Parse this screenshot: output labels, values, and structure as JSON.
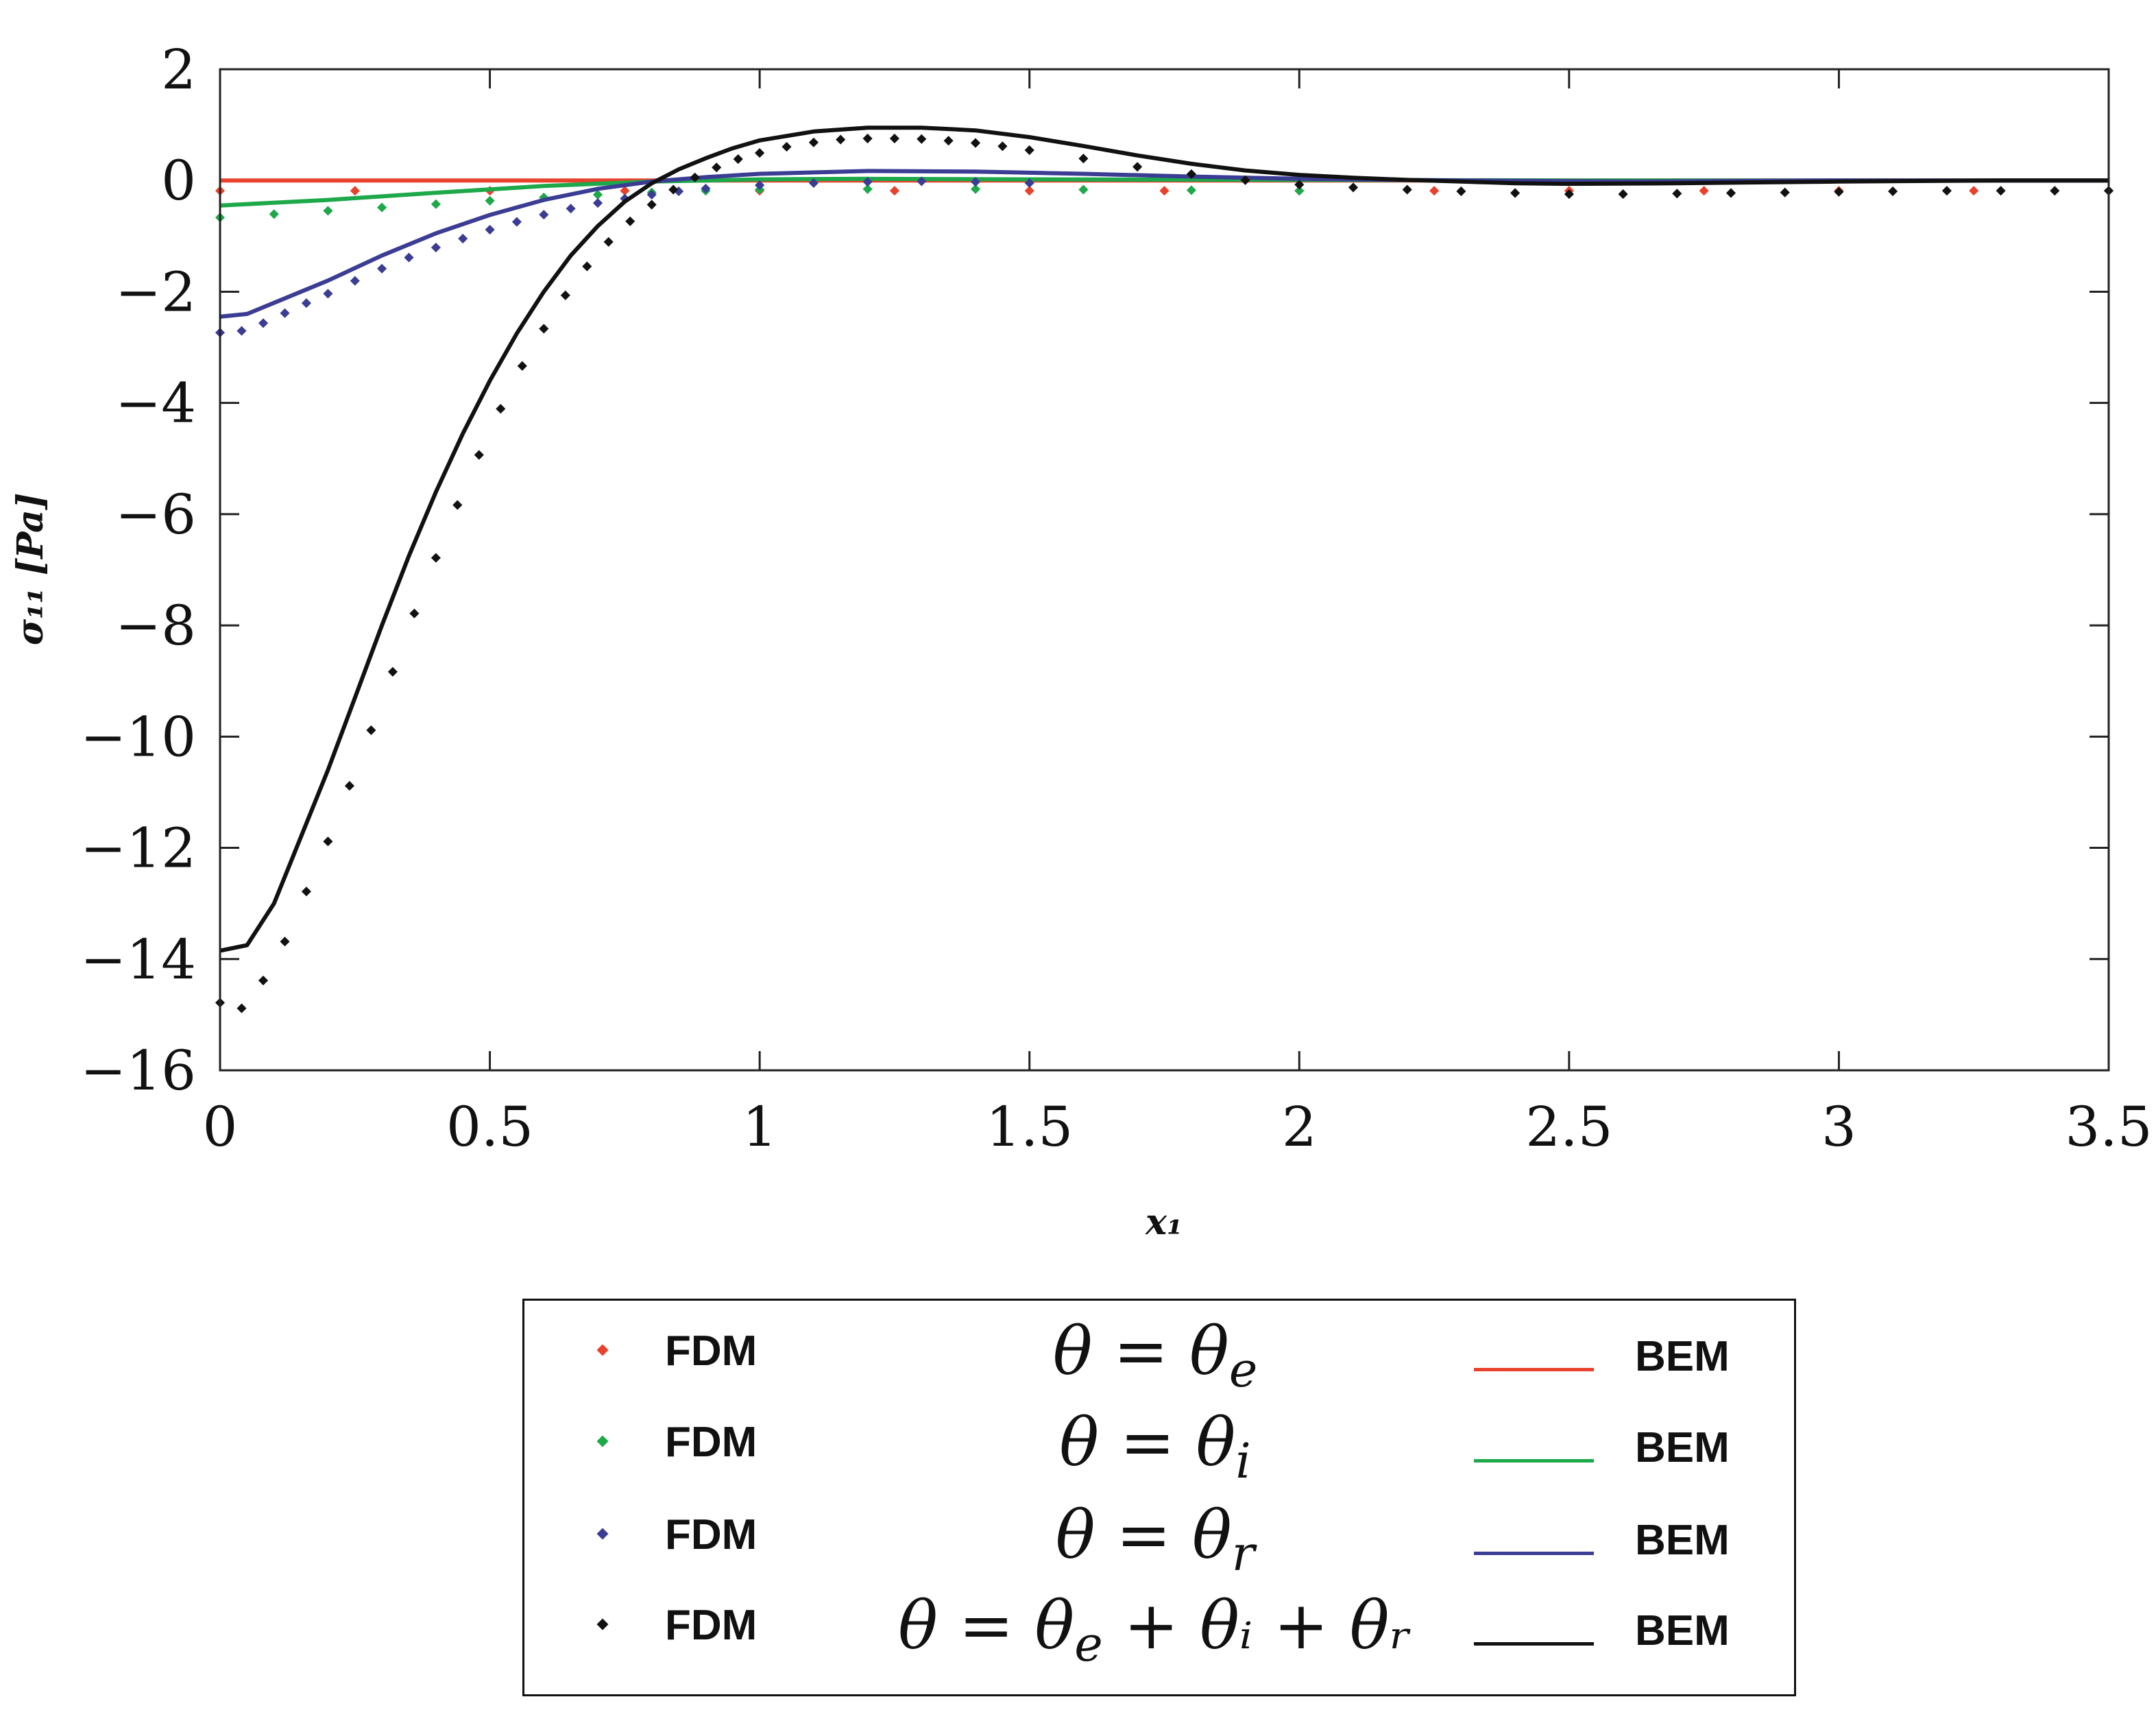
{
  "chart_data": {
    "type": "line",
    "title": "",
    "xlabel": "x₁",
    "ylabel": "σ₁₁ [Pa]",
    "xlim": [
      0,
      3.5
    ],
    "ylim": [
      -16,
      2
    ],
    "xticks": [
      0,
      0.5,
      1,
      1.5,
      2,
      2.5,
      3,
      3.5
    ],
    "xtick_labels": [
      "0",
      "0.5",
      "1",
      "1.5",
      "2",
      "2.5",
      "3",
      "3.5"
    ],
    "yticks": [
      2,
      0,
      -2,
      -4,
      -6,
      -8,
      -10,
      -12,
      -14,
      -16
    ],
    "ytick_labels": [
      "2",
      "0",
      "−2",
      "−4",
      "−6",
      "−8",
      "−10",
      "−12",
      "−14",
      "−16"
    ],
    "legend_position": "bottom",
    "series": [
      {
        "color": "#e8412c",
        "bem": {
          "x": [
            0,
            0.5,
            1,
            1.5,
            2,
            2.5,
            3,
            3.5
          ],
          "y": [
            0,
            0,
            0,
            0,
            0,
            0,
            0,
            0
          ]
        },
        "fdm": {
          "x": [
            0,
            0.25,
            0.5,
            0.75,
            1,
            1.25,
            1.5,
            1.75,
            2,
            2.25,
            2.5,
            2.75,
            3,
            3.25,
            3.5
          ],
          "y": [
            0,
            0,
            0,
            0,
            0,
            0,
            0,
            0,
            0,
            0,
            0,
            0,
            0,
            0,
            0
          ]
        }
      },
      {
        "color": "#1da84a",
        "bem": {
          "x": [
            0,
            0.2,
            0.4,
            0.6,
            0.8,
            1.0,
            1.2,
            1.5,
            2.0,
            2.5,
            3.0,
            3.5
          ],
          "y": [
            -0.45,
            -0.35,
            -0.22,
            -0.1,
            -0.02,
            0.02,
            0.03,
            0.02,
            0.01,
            0,
            0,
            0
          ]
        },
        "fdm": {
          "x": [
            0,
            0.1,
            0.2,
            0.3,
            0.4,
            0.5,
            0.6,
            0.7,
            0.8,
            0.9,
            1.0,
            1.2,
            1.4,
            1.6,
            1.8,
            2.0
          ],
          "y": [
            -0.48,
            -0.42,
            -0.36,
            -0.3,
            -0.24,
            -0.18,
            -0.12,
            -0.07,
            -0.03,
            0,
            0.02,
            0.03,
            0.03,
            0.02,
            0.01,
            0
          ]
        }
      },
      {
        "color": "#3b3c93",
        "bem": {
          "x": [
            0,
            0.05,
            0.1,
            0.2,
            0.3,
            0.4,
            0.5,
            0.6,
            0.7,
            0.8,
            0.9,
            1.0,
            1.2,
            1.4,
            1.6,
            1.8,
            2.0,
            2.3,
            2.6,
            3.0,
            3.5
          ],
          "y": [
            -2.45,
            -2.4,
            -2.2,
            -1.8,
            -1.35,
            -0.95,
            -0.62,
            -0.35,
            -0.15,
            -0.02,
            0.06,
            0.12,
            0.17,
            0.16,
            0.12,
            0.07,
            0.03,
            0,
            -0.02,
            0,
            0
          ]
        },
        "fdm": {
          "x": [
            0,
            0.04,
            0.08,
            0.12,
            0.16,
            0.2,
            0.25,
            0.3,
            0.35,
            0.4,
            0.45,
            0.5,
            0.55,
            0.6,
            0.65,
            0.7,
            0.75,
            0.8,
            0.85,
            0.9,
            1.0,
            1.1,
            1.2,
            1.3,
            1.4,
            1.5
          ],
          "y": [
            -2.55,
            -2.52,
            -2.38,
            -2.2,
            -2.02,
            -1.85,
            -1.62,
            -1.4,
            -1.2,
            -1.02,
            -0.86,
            -0.7,
            -0.56,
            -0.43,
            -0.32,
            -0.22,
            -0.14,
            -0.07,
            -0.01,
            0.04,
            0.1,
            0.14,
            0.16,
            0.17,
            0.16,
            0.14
          ]
        }
      },
      {
        "color": "#111111",
        "bem": {
          "x": [
            0,
            0.05,
            0.1,
            0.15,
            0.2,
            0.25,
            0.3,
            0.35,
            0.4,
            0.45,
            0.5,
            0.55,
            0.6,
            0.65,
            0.7,
            0.75,
            0.8,
            0.85,
            0.9,
            0.95,
            1.0,
            1.1,
            1.2,
            1.3,
            1.4,
            1.5,
            1.6,
            1.7,
            1.8,
            1.9,
            2.0,
            2.1,
            2.2,
            2.3,
            2.4,
            2.5,
            2.7,
            3.0,
            3.3,
            3.5
          ],
          "y": [
            -13.85,
            -13.75,
            -13.0,
            -11.8,
            -10.6,
            -9.3,
            -8.0,
            -6.75,
            -5.6,
            -4.55,
            -3.6,
            -2.75,
            -2.0,
            -1.35,
            -0.82,
            -0.38,
            -0.05,
            0.2,
            0.4,
            0.58,
            0.72,
            0.88,
            0.95,
            0.95,
            0.9,
            0.78,
            0.62,
            0.45,
            0.3,
            0.18,
            0.1,
            0.05,
            0.01,
            -0.02,
            -0.05,
            -0.06,
            -0.05,
            -0.02,
            0,
            0
          ]
        },
        "fdm": {
          "x": [
            0,
            0.04,
            0.08,
            0.12,
            0.16,
            0.2,
            0.24,
            0.28,
            0.32,
            0.36,
            0.4,
            0.44,
            0.48,
            0.52,
            0.56,
            0.6,
            0.64,
            0.68,
            0.72,
            0.76,
            0.8,
            0.84,
            0.88,
            0.92,
            0.96,
            1.0,
            1.05,
            1.1,
            1.15,
            1.2,
            1.25,
            1.3,
            1.35,
            1.4,
            1.45,
            1.5,
            1.6,
            1.7,
            1.8,
            1.9,
            2.0,
            2.1,
            2.2,
            2.3,
            2.4,
            2.5,
            2.6,
            2.7,
            2.8,
            2.9,
            3.0,
            3.1,
            3.2,
            3.3,
            3.4,
            3.5
          ],
          "y": [
            -14.6,
            -14.7,
            -14.2,
            -13.5,
            -12.6,
            -11.7,
            -10.7,
            -9.7,
            -8.65,
            -7.6,
            -6.6,
            -5.65,
            -4.75,
            -3.92,
            -3.15,
            -2.48,
            -1.88,
            -1.36,
            -0.92,
            -0.55,
            -0.25,
            0.02,
            0.24,
            0.42,
            0.57,
            0.68,
            0.79,
            0.87,
            0.92,
            0.94,
            0.94,
            0.93,
            0.9,
            0.86,
            0.8,
            0.73,
            0.58,
            0.43,
            0.3,
            0.19,
            0.11,
            0.06,
            0.02,
            -0.01,
            -0.04,
            -0.06,
            -0.06,
            -0.05,
            -0.04,
            -0.03,
            -0.02,
            -0.01,
            0,
            0,
            0,
            0
          ]
        }
      }
    ]
  },
  "legend": [
    {
      "fdm_label": "FDM",
      "theta_label": "θ = θ",
      "theta_sub": "e",
      "theta_rest": "",
      "bem_label": "BEM",
      "color": "#e8412c"
    },
    {
      "fdm_label": "FDM",
      "theta_label": "θ = θ",
      "theta_sub": "i",
      "theta_rest": "",
      "bem_label": "BEM",
      "color": "#1da84a"
    },
    {
      "fdm_label": "FDM",
      "theta_label": "θ = θ",
      "theta_sub": "r",
      "theta_rest": "",
      "bem_label": "BEM",
      "color": "#3b3c93"
    },
    {
      "fdm_label": "FDM",
      "theta_label": "θ = θ",
      "theta_sub": "e",
      "theta_rest": " +  θᵢ + θᵣ",
      "bem_label": "BEM",
      "color": "#111111"
    }
  ]
}
